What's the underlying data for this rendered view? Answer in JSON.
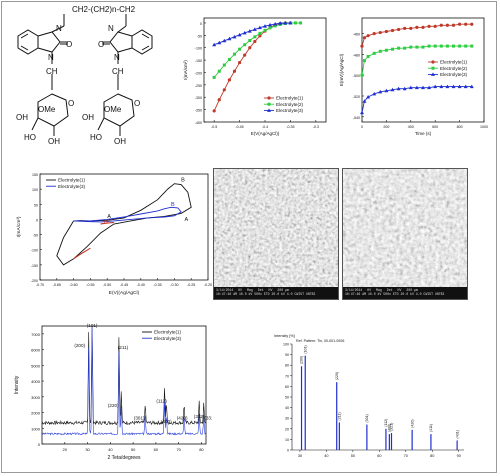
{
  "structure": {
    "chain_label": "CH2-(CH2)n-CH2",
    "chain_left": "CH",
    "chain_sub": "2",
    "chain_mid": "(CH",
    "chain_n": "n",
    "carbonyl_O": "O",
    "N": "N",
    "ch2_label": "CH",
    "ch2_sub": "2",
    "ring_O": "O",
    "OH": "OH",
    "OMe": "OMe",
    "HO": "HO"
  },
  "sem": {
    "left_bar": [
      "3/14/2014",
      "HV",
      "Mag",
      "Det",
      "HV",
      "200 μm"
    ],
    "left_bar2": "10:47:46 AM  10.0 kV  500x  ETD  20.0 kV  4.0  CWIST UNTBI",
    "right_bar": [
      "3/14/2014",
      "HV",
      "Mag",
      "Det",
      "HV",
      "200 μm"
    ],
    "right_bar2": "10:47:46 AM  10.0 kV  500x  ETD  20.0 kV  4.0  CWIST UNTBI"
  },
  "colors": {
    "e1": "#c0392b",
    "e2": "#2ecc40",
    "e3": "#1f2fd0",
    "black": "#111111",
    "blue_xrd": "#2a3fd8"
  },
  "chart_data": [
    {
      "type": "line",
      "id": "polarization",
      "xlabel": "E(V(Ag/AgCl))",
      "ylabel": "I(mA/cm²)",
      "xlim": [
        -0.52,
        -0.28
      ],
      "ylim": [
        -400,
        20
      ],
      "xticks": [
        "-0.5",
        "-0.45",
        "-0.4",
        "-0.35",
        "-0.3"
      ],
      "yticks": [
        "0",
        "-50",
        "-100",
        "-150",
        "-200",
        "-250",
        "-300",
        "-350",
        "-400"
      ],
      "legend": [
        "Electrolyte(1)",
        "Electrolyte(2)",
        "Electrolyte(3)"
      ],
      "series": [
        {
          "name": "Electrolyte(1)",
          "x": [
            -0.5,
            -0.49,
            -0.48,
            -0.47,
            -0.46,
            -0.45,
            -0.44,
            -0.43,
            -0.42,
            -0.41,
            -0.4,
            -0.39,
            -0.38,
            -0.37,
            -0.36,
            -0.35
          ],
          "y": [
            -355,
            -310,
            -270,
            -230,
            -195,
            -160,
            -130,
            -100,
            -75,
            -52,
            -33,
            -18,
            -8,
            -2,
            0,
            0
          ]
        },
        {
          "name": "Electrolyte(2)",
          "x": [
            -0.5,
            -0.49,
            -0.48,
            -0.47,
            -0.46,
            -0.45,
            -0.44,
            -0.43,
            -0.42,
            -0.41,
            -0.4,
            -0.39,
            -0.38,
            -0.37,
            -0.36,
            -0.35,
            -0.34,
            -0.33
          ],
          "y": [
            -220,
            -195,
            -170,
            -148,
            -126,
            -106,
            -88,
            -71,
            -56,
            -42,
            -30,
            -20,
            -12,
            -6,
            -2,
            0,
            0,
            0
          ]
        },
        {
          "name": "Electrolyte(3)",
          "x": [
            -0.5,
            -0.49,
            -0.48,
            -0.47,
            -0.46,
            -0.45,
            -0.44,
            -0.43,
            -0.42,
            -0.41,
            -0.4,
            -0.39,
            -0.38,
            -0.37,
            -0.36,
            -0.35
          ],
          "y": [
            -88,
            -80,
            -72,
            -64,
            -56,
            -48,
            -40,
            -33,
            -26,
            -19,
            -13,
            -8,
            -4,
            -1,
            0,
            0
          ]
        }
      ]
    },
    {
      "type": "line",
      "id": "potential-time",
      "xlabel": "Time (s)",
      "ylabel": "E(mV)(Ag/AgCl)",
      "xlim": [
        0,
        1000
      ],
      "ylim": [
        -545,
        -445
      ],
      "xticks": [
        "0",
        "200",
        "400",
        "600",
        "800",
        "1000"
      ],
      "yticks": [
        "-460",
        "-480",
        "-500",
        "-520",
        "-540"
      ],
      "legend": [
        "Electrolyte(1)",
        "Electrolyte(2)",
        "Electrolyte(3)"
      ],
      "series": [
        {
          "name": "Electrolyte(1)",
          "x": [
            0,
            20,
            50,
            100,
            150,
            200,
            250,
            300,
            350,
            400,
            450,
            500,
            550,
            600,
            650,
            700,
            750,
            800,
            850,
            900
          ],
          "y": [
            -472,
            -464,
            -462,
            -460,
            -459,
            -458,
            -457,
            -456,
            -455,
            -455,
            -454,
            -454,
            -453,
            -453,
            -452,
            -452,
            -452,
            -451,
            -451,
            -451
          ]
        },
        {
          "name": "Electrolyte(2)",
          "x": [
            0,
            20,
            50,
            100,
            150,
            200,
            250,
            300,
            350,
            400,
            450,
            500,
            550,
            600,
            650,
            700,
            750,
            800,
            850,
            900
          ],
          "y": [
            -500,
            -486,
            -482,
            -479,
            -477,
            -476,
            -475,
            -474,
            -474,
            -473,
            -473,
            -473,
            -472,
            -472,
            -472,
            -472,
            -472,
            -472,
            -472,
            -472
          ]
        },
        {
          "name": "Electrolyte(3)",
          "x": [
            0,
            20,
            50,
            100,
            150,
            200,
            250,
            300,
            350,
            400,
            450,
            500,
            550,
            600,
            650,
            700,
            750,
            800,
            850,
            900
          ],
          "y": [
            -536,
            -525,
            -521,
            -518,
            -516,
            -515,
            -514,
            -513,
            -513,
            -512,
            -512,
            -512,
            -512,
            -511,
            -511,
            -511,
            -511,
            -511,
            -511,
            -511
          ]
        }
      ]
    },
    {
      "type": "line",
      "id": "cyclic-voltammetry",
      "xlabel": "E(V)(Ag/AgCl)",
      "ylabel": "I(mA/cm²)",
      "xlim": [
        -0.7,
        -0.2
      ],
      "ylim": [
        -200,
        150
      ],
      "xticks": [
        "-0.70",
        "-0.65",
        "-0.60",
        "-0.55",
        "-0.50",
        "-0.45",
        "-0.40",
        "-0.35",
        "-0.30",
        "-0.25",
        "-0.20"
      ],
      "yticks": [
        "150",
        "100",
        "50",
        "0",
        "-50",
        "-100",
        "-150",
        "-200"
      ],
      "legend": [
        "Electrolyte(1)",
        "Electrolyte(3)"
      ],
      "annotations": [
        "B",
        "B",
        "A",
        "A",
        "A"
      ],
      "series": [
        {
          "name": "Electrolyte(1)",
          "x": [
            -0.6,
            -0.58,
            -0.55,
            -0.5,
            -0.45,
            -0.4,
            -0.35,
            -0.32,
            -0.3,
            -0.28,
            -0.26,
            -0.25,
            -0.28,
            -0.33,
            -0.38,
            -0.43,
            -0.48,
            -0.52,
            -0.56,
            -0.6,
            -0.63,
            -0.65,
            -0.63,
            -0.6
          ],
          "y": [
            -5,
            -4,
            -5,
            -3,
            5,
            30,
            65,
            100,
            118,
            115,
            90,
            40,
            20,
            10,
            5,
            -5,
            -15,
            -45,
            -90,
            -130,
            -150,
            -120,
            -60,
            -5
          ]
        },
        {
          "name": "Electrolyte(3)",
          "x": [
            -0.6,
            -0.55,
            -0.5,
            -0.45,
            -0.4,
            -0.35,
            -0.33,
            -0.31,
            -0.29,
            -0.28,
            -0.3,
            -0.33,
            -0.38,
            -0.43,
            -0.48,
            -0.52,
            -0.56,
            -0.6
          ],
          "y": [
            -5,
            -5,
            0,
            8,
            18,
            28,
            35,
            40,
            38,
            25,
            12,
            8,
            5,
            0,
            -5,
            -8,
            -7,
            -5
          ]
        }
      ]
    },
    {
      "type": "line",
      "id": "xrd",
      "xlabel": "2 Teta/degrees",
      "ylabel": "Intensity",
      "xlim": [
        10,
        82
      ],
      "ylim": [
        0,
        7500
      ],
      "xticks": [
        "20",
        "30",
        "40",
        "50",
        "60",
        "70",
        "80"
      ],
      "yticks": [
        "0",
        "1000",
        "2000",
        "3000",
        "4000",
        "5000",
        "6000",
        "7000"
      ],
      "legend": [
        "Electrolyte(1)",
        "Electrolyte(3)"
      ],
      "peaks": [
        {
          "hkl": "(200)",
          "x": 30.5,
          "y": 5800
        },
        {
          "hkl": "(101)",
          "x": 32.0,
          "y": 7100
        },
        {
          "hkl": "(211)",
          "x": 43.8,
          "y": 5700
        },
        {
          "hkl": "(220)",
          "x": 44.8,
          "y": 2000
        },
        {
          "hkl": "(301)",
          "x": 55.3,
          "y": 1200
        },
        {
          "hkl": "(112)",
          "x": 63.8,
          "y": 2300
        },
        {
          "hkl": "(400)",
          "x": 64.6,
          "y": 1300
        },
        {
          "hkl": "(420)",
          "x": 72.4,
          "y": 1200
        },
        {
          "hkl": "(312)",
          "x": 79.0,
          "y": 1300
        },
        {
          "hkl": "(331)",
          "x": 81.0,
          "y": 1200
        }
      ]
    },
    {
      "type": "bar",
      "id": "reference-pattern",
      "title": "Intensity [%]",
      "subtitle": "Ref. Pattern: Tin, 00-001-0926",
      "xlim": [
        27,
        92
      ],
      "ylim": [
        0,
        100
      ],
      "xticks": [
        "30",
        "40",
        "50",
        "60",
        "70",
        "80",
        "90"
      ],
      "yticks": [
        "100",
        "90",
        "80",
        "70",
        "60",
        "50",
        "40",
        "30",
        "20",
        "10",
        "0"
      ],
      "x": [
        30.6,
        32.0,
        43.9,
        44.9,
        55.3,
        62.5,
        63.8,
        64.6,
        72.4,
        79.5,
        89.4
      ],
      "values": [
        79,
        89,
        64,
        26,
        24,
        20,
        15,
        16,
        19,
        15,
        9
      ],
      "labels": [
        "(200)",
        "(101)",
        "(220)",
        "(211)",
        "(301)",
        "(112)",
        "(400)",
        "(321)",
        "(420)",
        "(411)",
        "(431)"
      ]
    }
  ]
}
